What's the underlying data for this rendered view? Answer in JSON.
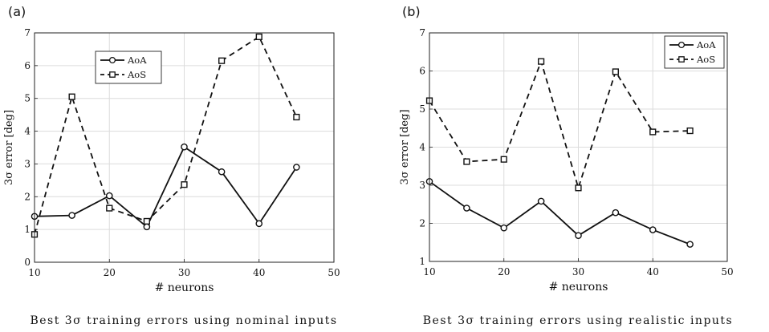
{
  "chart_data": [
    {
      "type": "line",
      "panel_label": "(a)",
      "caption": "Best 3σ training errors using nominal inputs",
      "xlabel": "# neurons",
      "ylabel": "3σ error [deg]",
      "xlim": [
        10,
        50
      ],
      "ylim": [
        0,
        7
      ],
      "x_ticks": [
        10,
        20,
        30,
        40,
        50
      ],
      "y_ticks": [
        0,
        1,
        2,
        3,
        4,
        5,
        6,
        7
      ],
      "grid": true,
      "legend_position": "top-left",
      "x": [
        10,
        15,
        20,
        25,
        30,
        35,
        40,
        45
      ],
      "series": [
        {
          "name": "AoA",
          "style": "solid",
          "marker": "circle",
          "values": [
            1.4,
            1.43,
            2.03,
            1.08,
            3.52,
            2.76,
            1.18,
            2.9
          ]
        },
        {
          "name": "AoS",
          "style": "dashed",
          "marker": "square",
          "values": [
            0.85,
            5.05,
            1.65,
            1.25,
            2.37,
            6.15,
            6.88,
            4.43
          ]
        }
      ]
    },
    {
      "type": "line",
      "panel_label": "(b)",
      "caption": "Best 3σ training errors using realistic inputs",
      "xlabel": "# neurons",
      "ylabel": "3σ error [deg]",
      "xlim": [
        10,
        50
      ],
      "ylim": [
        1,
        7
      ],
      "x_ticks": [
        10,
        20,
        30,
        40,
        50
      ],
      "y_ticks": [
        1,
        2,
        3,
        4,
        5,
        6,
        7
      ],
      "grid": true,
      "legend_position": "top-right",
      "x": [
        10,
        15,
        20,
        25,
        30,
        35,
        40,
        45
      ],
      "series": [
        {
          "name": "AoA",
          "style": "solid",
          "marker": "circle",
          "values": [
            3.1,
            2.4,
            1.88,
            2.58,
            1.68,
            2.28,
            1.83,
            1.45
          ]
        },
        {
          "name": "AoS",
          "style": "dashed",
          "marker": "square",
          "values": [
            5.22,
            3.62,
            3.68,
            6.25,
            2.93,
            5.98,
            4.4,
            4.43
          ]
        }
      ]
    }
  ]
}
